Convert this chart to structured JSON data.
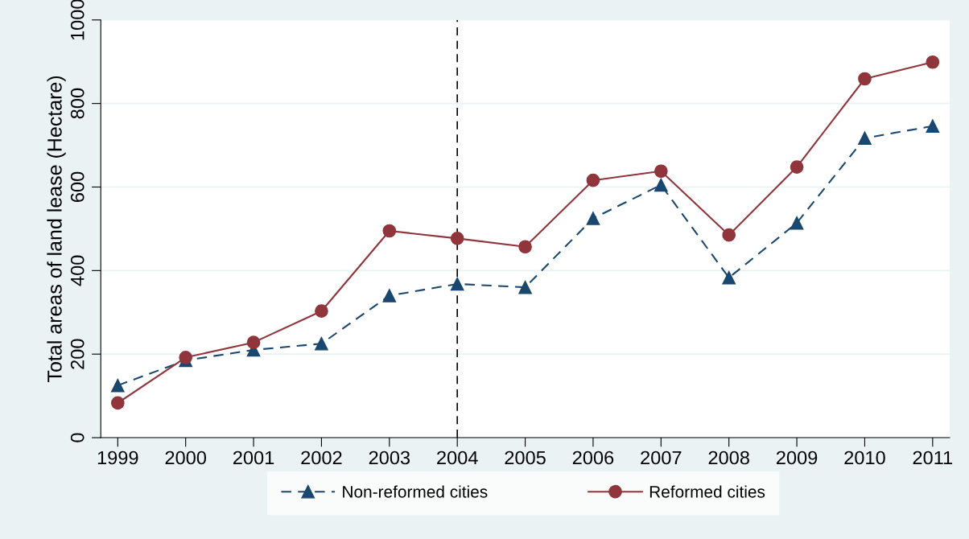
{
  "chart_data": {
    "type": "line",
    "ylabel": "Total areas of land lease (Hectare)",
    "categories": [
      "1999",
      "2000",
      "2001",
      "2002",
      "2003",
      "2004",
      "2005",
      "2006",
      "2007",
      "2008",
      "2009",
      "2010",
      "2011"
    ],
    "series": [
      {
        "name": "Non-reformed cities",
        "color": "#1a476f",
        "marker": "triangle",
        "line_style": "dashed",
        "values": [
          125,
          185,
          210,
          225,
          340,
          368,
          360,
          525,
          605,
          383,
          514,
          717,
          746
        ]
      },
      {
        "name": "Reformed cities",
        "color": "#90353b",
        "marker": "circle",
        "line_style": "solid",
        "values": [
          83,
          192,
          228,
          303,
          495,
          477,
          457,
          616,
          638,
          485,
          648,
          859,
          899
        ]
      }
    ],
    "ylim": [
      0,
      1000
    ],
    "yticks": [
      0,
      200,
      400,
      600,
      800,
      1000
    ],
    "grid": "y",
    "legend": "bottom",
    "ref_lines": [
      {
        "axis": "x",
        "value": "2004",
        "color": "#000000",
        "line_style": "dashed"
      }
    ]
  }
}
